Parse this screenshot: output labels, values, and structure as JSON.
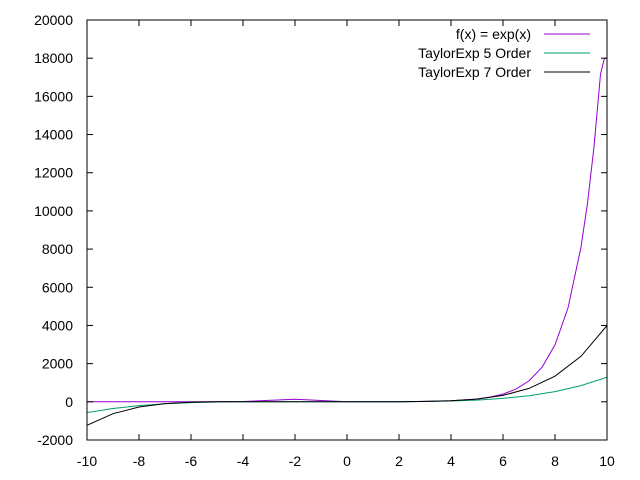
{
  "chart_data": {
    "type": "line",
    "title": "",
    "xlabel": "",
    "ylabel": "",
    "xlim": [
      -10,
      10
    ],
    "ylim": [
      -2000,
      20000
    ],
    "x_ticks": [
      -10,
      -8,
      -6,
      -4,
      -2,
      0,
      2,
      4,
      6,
      8,
      10
    ],
    "y_ticks": [
      -2000,
      0,
      2000,
      4000,
      6000,
      8000,
      10000,
      12000,
      14000,
      16000,
      18000,
      20000
    ],
    "legend_position": "top-right",
    "grid": false,
    "series": [
      {
        "name": "f(x) = exp(x)",
        "color": "#9400d3",
        "x": [
          -10,
          -8,
          -6,
          -4,
          -2,
          0,
          2,
          3,
          4,
          5,
          5.5,
          6,
          6.5,
          7,
          7.5,
          8,
          8.5,
          9,
          9.25,
          9.5,
          9.75,
          9.9,
          10,
          10
        ],
        "y": [
          0,
          0,
          2,
          18,
          135,
          1,
          7,
          20,
          55,
          148,
          245,
          403,
          665,
          1097,
          1808,
          2981,
          4915,
          8103,
          10405,
          13360,
          17154,
          18000,
          18000,
          18000
        ]
      },
      {
        "name": "TaylorExp 5 Order",
        "color": "#009e73",
        "x": [
          -10,
          -9,
          -8,
          -7,
          -6,
          -5,
          -4,
          -3,
          -2,
          -1,
          0,
          1,
          2,
          3,
          4,
          5,
          6,
          7,
          8,
          9,
          10
        ],
        "y": [
          -563,
          -349,
          -200,
          -101,
          -41,
          -9,
          2,
          3,
          1,
          0,
          1,
          3,
          7,
          18,
          42,
          91,
          178,
          319,
          536,
          851,
          1292
        ]
      },
      {
        "name": "TaylorExp 7 Order",
        "color": "#000000",
        "x": [
          -10,
          -9,
          -8,
          -7,
          -6,
          -5,
          -4,
          -3,
          -2,
          -1,
          0,
          1,
          2,
          3,
          4,
          5,
          6,
          7,
          8,
          9,
          10
        ],
        "y": [
          -1231,
          -624,
          -270,
          -91,
          -19,
          1,
          4,
          3,
          1,
          0,
          1,
          3,
          7,
          20,
          52,
          141,
          334,
          702,
          1343,
          2386,
          3992
        ]
      }
    ]
  }
}
